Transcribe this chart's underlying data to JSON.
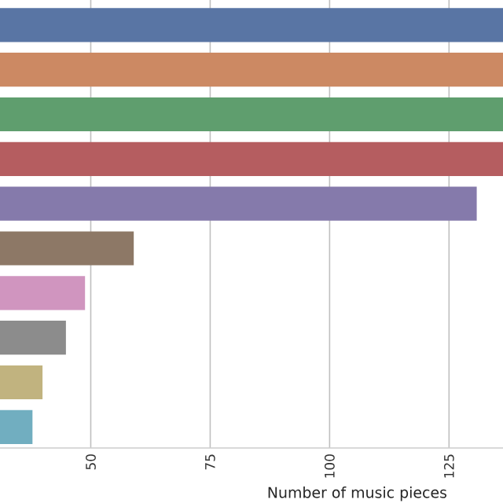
{
  "chart_data": {
    "type": "bar",
    "orientation": "horizontal",
    "xlabel": "Number of music pieces",
    "categories": [
      null,
      null,
      null,
      null,
      null,
      null,
      null,
      null,
      null,
      null
    ],
    "values": [
      136.3,
      136.3,
      136.3,
      136.3,
      130.8,
      59.0,
      48.8,
      44.8,
      39.9,
      37.8
    ],
    "colors": [
      "#5975a4",
      "#cc8963",
      "#5f9e6e",
      "#b55d60",
      "#857aab",
      "#8d7866",
      "#d095bf",
      "#8c8c8c",
      "#c1b37f",
      "#71aec0"
    ],
    "xlim": [
      31.0,
      136.3
    ],
    "xticks": [
      50,
      75,
      100,
      125
    ],
    "grid": "x",
    "tick_labels": "x"
  }
}
